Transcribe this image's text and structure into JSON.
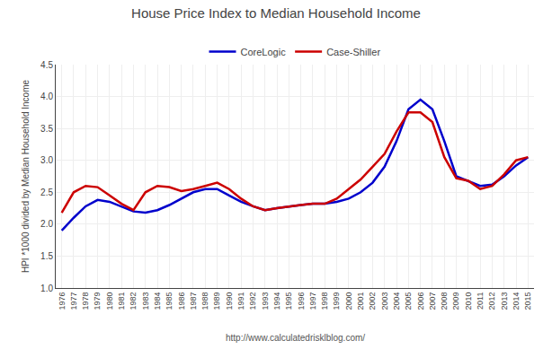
{
  "chart_data": {
    "type": "line",
    "title": "House Price Index to Median Household Income",
    "ylabel": "HPI *1000 divided by Median Household Income",
    "annotations": [
      "http://www.calculatedrisklblog.com/"
    ],
    "x": [
      1976,
      1977,
      1978,
      1979,
      1980,
      1981,
      1982,
      1983,
      1984,
      1985,
      1986,
      1987,
      1988,
      1989,
      1990,
      1991,
      1992,
      1993,
      1994,
      1995,
      1996,
      1997,
      1998,
      1999,
      2000,
      2001,
      2002,
      2003,
      2004,
      2005,
      2006,
      2007,
      2008,
      2009,
      2010,
      2011,
      2012,
      2013,
      2014,
      2015
    ],
    "series": [
      {
        "name": "CoreLogic",
        "color": "#0000cc",
        "values": [
          1.9,
          2.1,
          2.28,
          2.38,
          2.35,
          2.28,
          2.2,
          2.18,
          2.22,
          2.3,
          2.4,
          2.5,
          2.55,
          2.55,
          2.45,
          2.35,
          2.28,
          2.22,
          2.25,
          2.28,
          2.3,
          2.32,
          2.32,
          2.35,
          2.4,
          2.5,
          2.65,
          2.9,
          3.3,
          3.8,
          3.95,
          3.8,
          3.3,
          2.75,
          2.68,
          2.6,
          2.62,
          2.75,
          2.92,
          3.05
        ]
      },
      {
        "name": "Case-Shiller",
        "color": "#cc0000",
        "values": [
          2.18,
          2.5,
          2.6,
          2.58,
          2.45,
          2.32,
          2.22,
          2.5,
          2.6,
          2.58,
          2.52,
          2.55,
          2.6,
          2.65,
          2.55,
          2.4,
          2.28,
          2.22,
          2.25,
          2.28,
          2.3,
          2.32,
          2.32,
          2.4,
          2.55,
          2.7,
          2.9,
          3.1,
          3.45,
          3.75,
          3.75,
          3.6,
          3.05,
          2.72,
          2.68,
          2.55,
          2.6,
          2.78,
          3.0,
          3.05
        ]
      }
    ],
    "xlim": [
      1975.5,
      2015.5
    ],
    "xticks": [
      1976,
      1977,
      1978,
      1979,
      1980,
      1981,
      1982,
      1983,
      1984,
      1985,
      1986,
      1987,
      1988,
      1989,
      1990,
      1991,
      1992,
      1993,
      1994,
      1995,
      1996,
      1997,
      1998,
      1999,
      2000,
      2001,
      2002,
      2003,
      2004,
      2005,
      2006,
      2007,
      2008,
      2009,
      2010,
      2011,
      2012,
      2013,
      2014,
      2015
    ],
    "ylim": [
      1.0,
      4.5
    ],
    "yticks": [
      {
        "value": 1.0,
        "label": "1.0"
      },
      1.5,
      {
        "value": 2.0,
        "label": "2.0"
      },
      2.5,
      {
        "value": 3.0,
        "label": "3.0"
      },
      3.5,
      {
        "value": 4.0,
        "label": "4.0"
      },
      4.5
    ],
    "grid": true,
    "legend": "top"
  }
}
